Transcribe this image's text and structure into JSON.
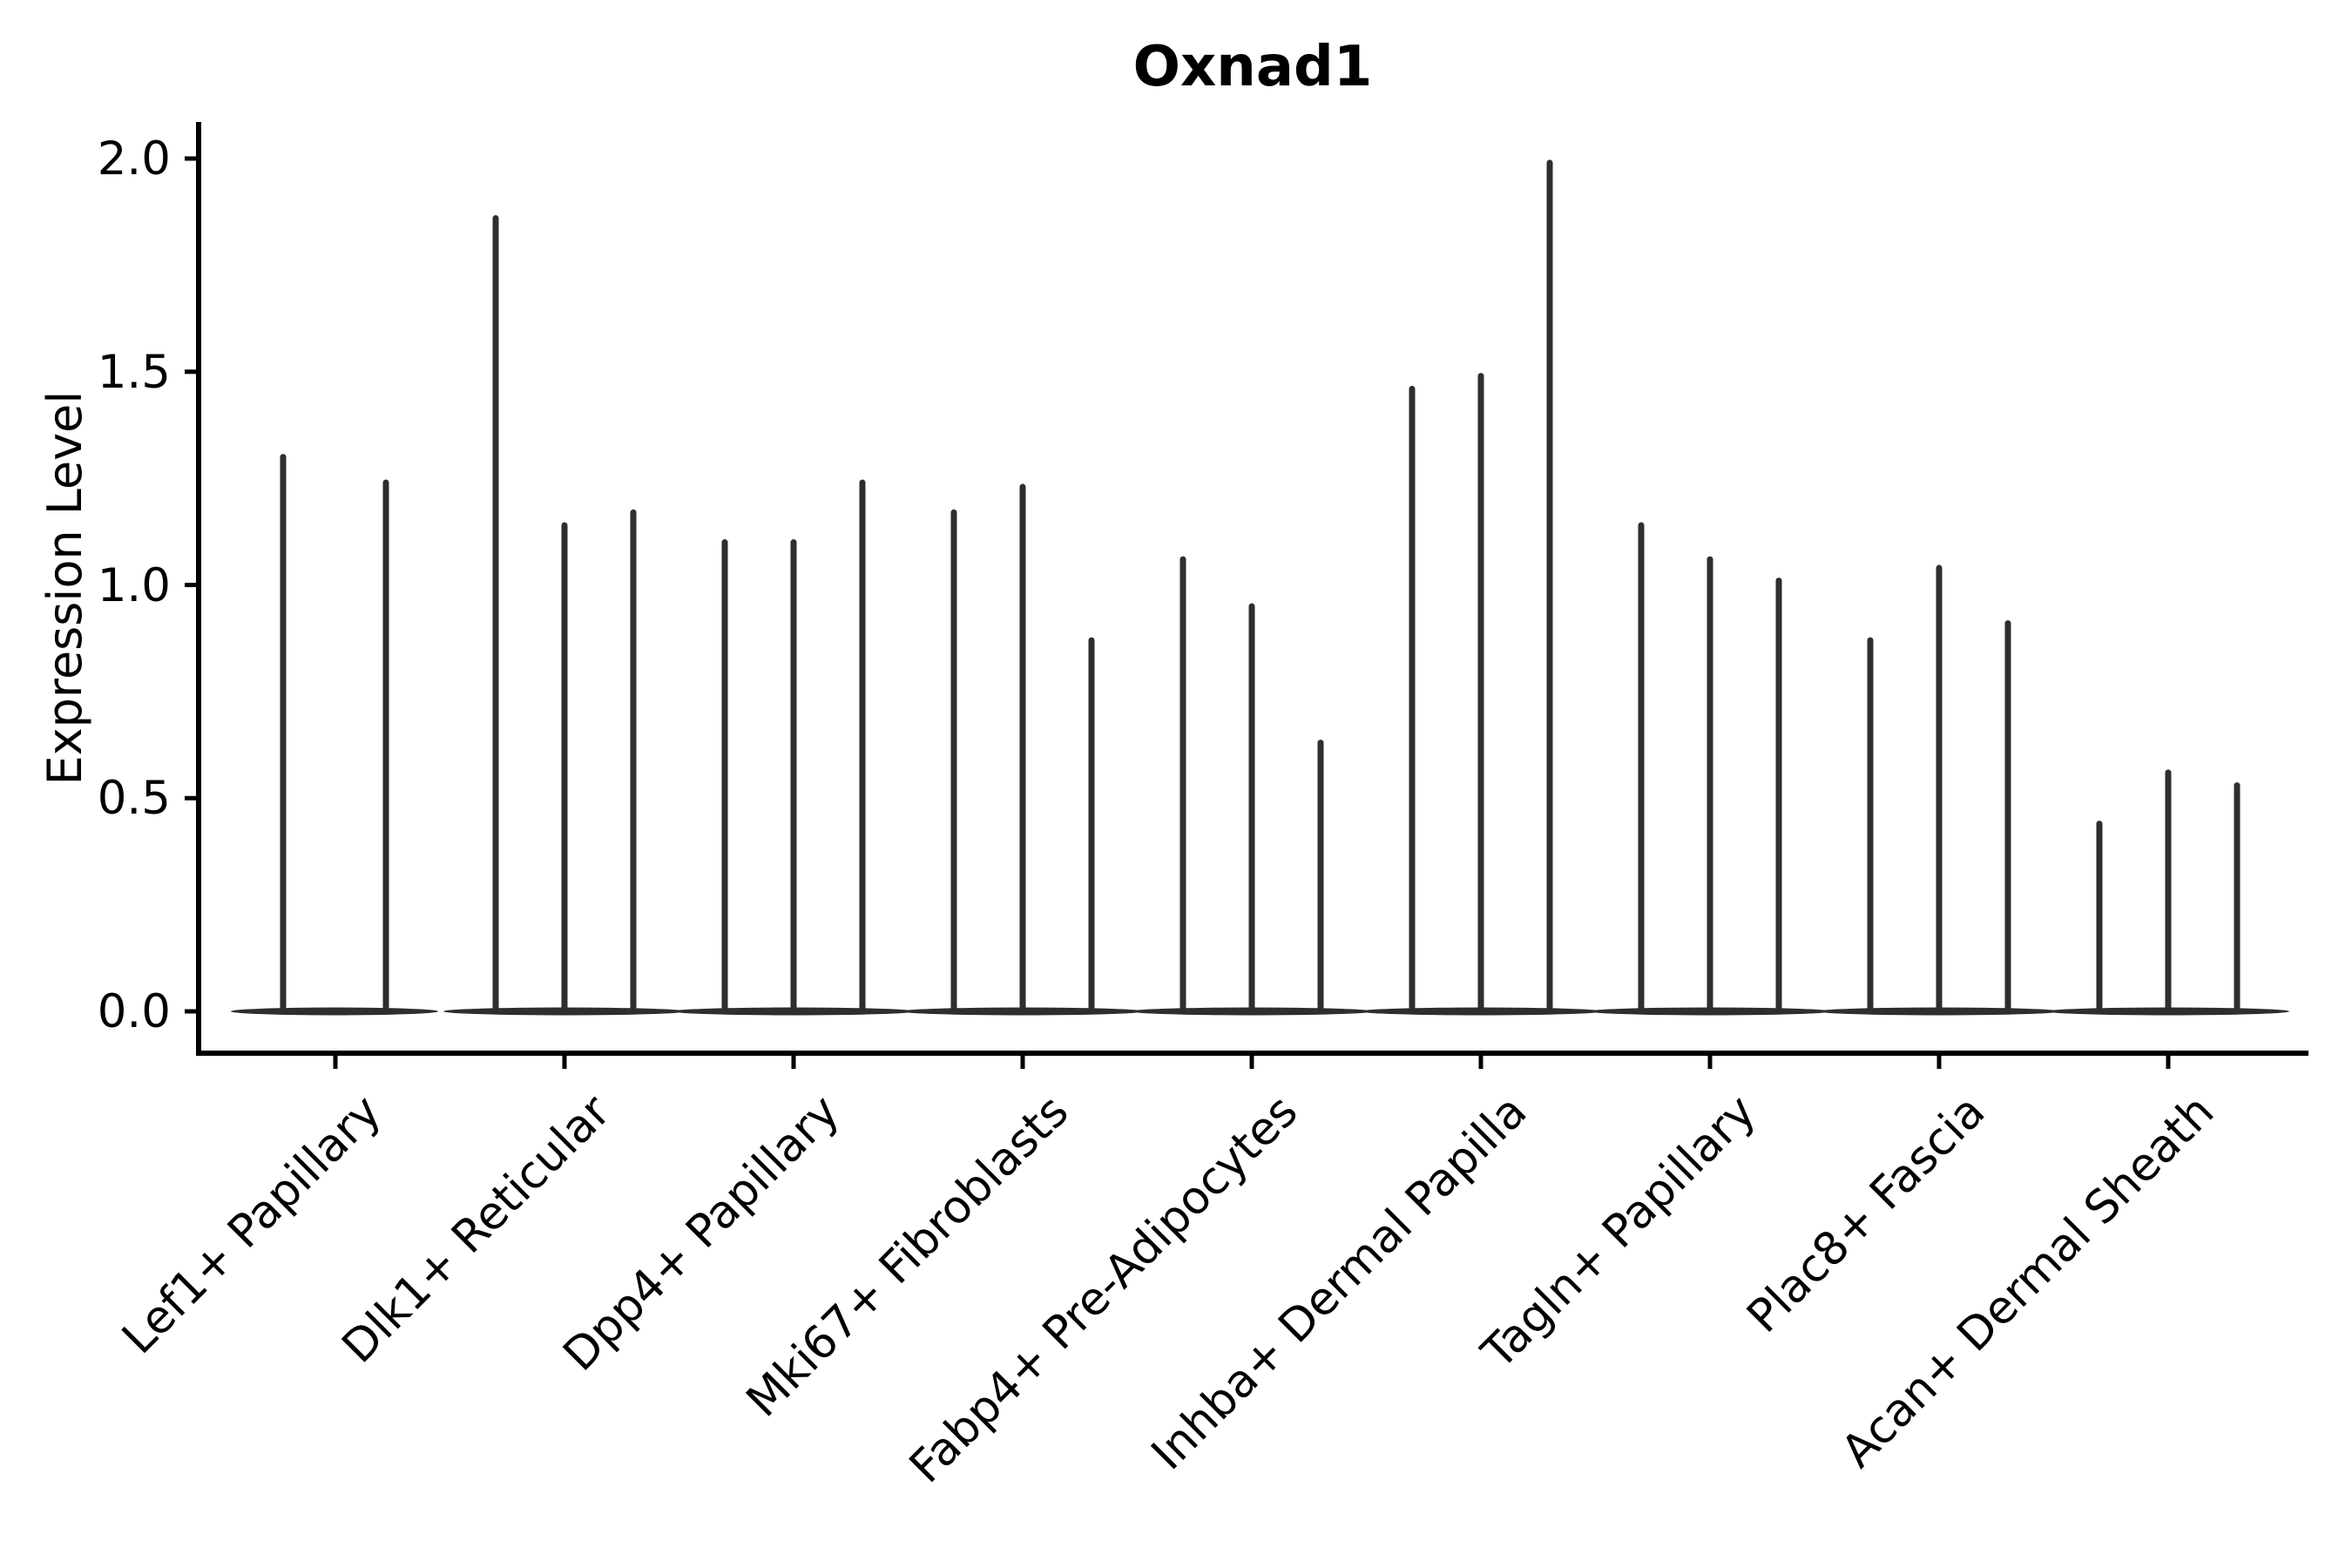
{
  "title": "Oxnad1",
  "ylabel": "Expression Level",
  "ytick_labels": [
    "2.0",
    "1.5",
    "1.0",
    "0.5",
    "0.0"
  ],
  "style": {
    "violin_color": "#2e2e2e",
    "axis_color": "#000000",
    "background": "#ffffff"
  },
  "chart_data": {
    "type": "violin",
    "title": "Oxnad1",
    "xlabel": "",
    "ylabel": "Expression Level",
    "ylim": [
      0.0,
      2.0
    ],
    "ytick_values": [
      0.0,
      0.5,
      1.0,
      1.5,
      2.0
    ],
    "grid": false,
    "legend": "none",
    "description": "Single-cell expression violin plot; each category shows 2-3 narrow violins: a wide flat density mass at 0 and a thin spike up to the maximum expression value.",
    "categories": [
      "Lef1+ Papillary",
      "Dlk1+ Reticular",
      "Dpp4+ Papillary",
      "Mki67+ Fibroblasts",
      "Fabp4+ Pre-Adipocytes",
      "Inhba+ Dermal Papilla",
      "Tagln+ Papillary",
      "Plac8+ Fascia",
      "Acan+ Dermal Sheath"
    ],
    "groups": [
      {
        "label": "Lef1+ Papillary",
        "violins": [
          {
            "dx": -60,
            "max": 1.3
          },
          {
            "dx": 58,
            "max": 1.24
          }
        ]
      },
      {
        "label": "Dlk1+ Reticular",
        "violins": [
          {
            "dx": -79,
            "max": 1.86
          },
          {
            "dx": 0,
            "max": 1.14
          },
          {
            "dx": 79,
            "max": 1.17
          }
        ]
      },
      {
        "label": "Dpp4+ Papillary",
        "violins": [
          {
            "dx": -79,
            "max": 1.1
          },
          {
            "dx": 0,
            "max": 1.1
          },
          {
            "dx": 79,
            "max": 1.24
          }
        ]
      },
      {
        "label": "Mki67+ Fibroblasts",
        "violins": [
          {
            "dx": -79,
            "max": 1.17
          },
          {
            "dx": 0,
            "max": 1.23
          },
          {
            "dx": 79,
            "max": 0.87
          }
        ]
      },
      {
        "label": "Fabp4+ Pre-Adipocytes",
        "violins": [
          {
            "dx": -79,
            "max": 1.06
          },
          {
            "dx": 0,
            "max": 0.95
          },
          {
            "dx": 79,
            "max": 0.63
          }
        ]
      },
      {
        "label": "Inhba+ Dermal Papilla",
        "violins": [
          {
            "dx": -79,
            "max": 1.46
          },
          {
            "dx": 0,
            "max": 1.49
          },
          {
            "dx": 79,
            "max": 1.99
          }
        ]
      },
      {
        "label": "Tagln+ Papillary",
        "violins": [
          {
            "dx": -79,
            "max": 1.14
          },
          {
            "dx": 0,
            "max": 1.06
          },
          {
            "dx": 79,
            "max": 1.01
          }
        ]
      },
      {
        "label": "Plac8+ Fascia",
        "violins": [
          {
            "dx": -79,
            "max": 0.87
          },
          {
            "dx": 0,
            "max": 1.04
          },
          {
            "dx": 79,
            "max": 0.91
          }
        ]
      },
      {
        "label": "Acan+ Dermal Sheath",
        "violins": [
          {
            "dx": -79,
            "max": 0.44
          },
          {
            "dx": 0,
            "max": 0.56
          },
          {
            "dx": 79,
            "max": 0.53
          }
        ]
      }
    ]
  }
}
